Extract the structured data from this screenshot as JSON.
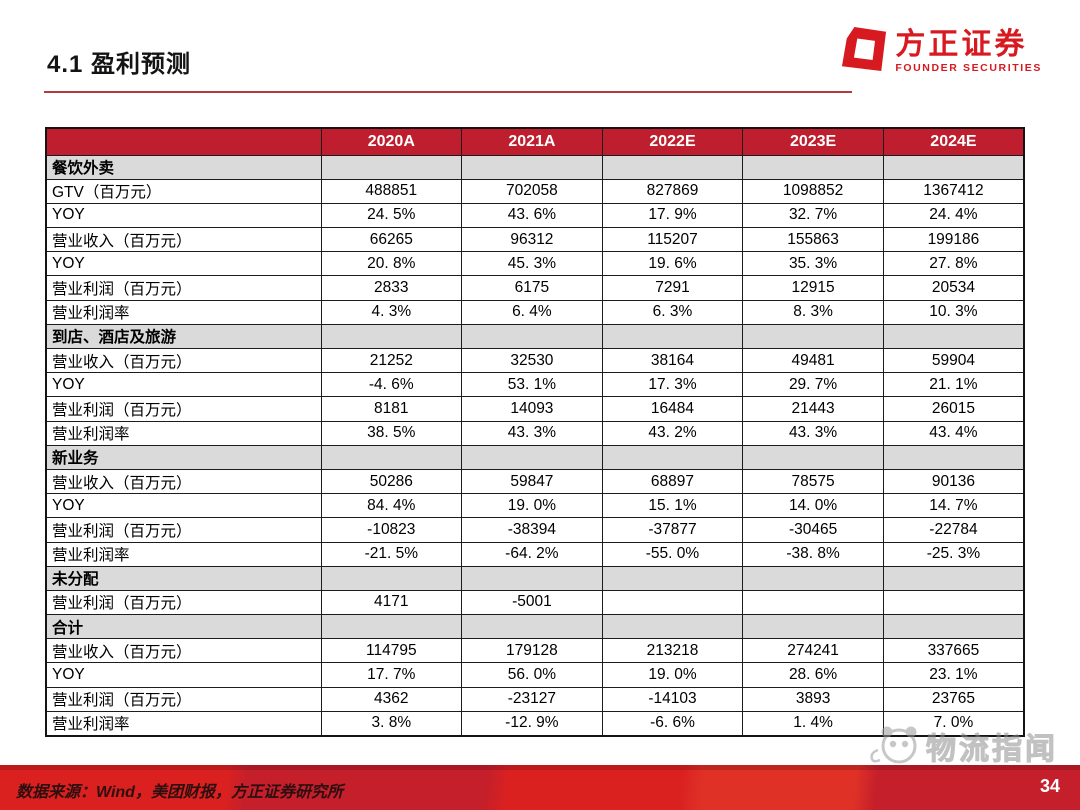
{
  "header": {
    "title": "4.1 盈利预测"
  },
  "logo": {
    "name_cn": "方正证券",
    "name_en": "FOUNDER SECURITIES"
  },
  "watermark": {
    "text": "物流指闻"
  },
  "footer": {
    "source": "数据来源：Wind，美团财报，方正证券研究所",
    "page_number": "34"
  },
  "colors": {
    "header_red": "#be1e2d",
    "section_gray": "#dadada",
    "logo_red": "#d71920",
    "rule_red": "#b23a3e",
    "footer_red": "#da2120",
    "footer_dark_red": "#c41f2b"
  },
  "chart_data": {
    "type": "table",
    "title": "盈利预测表（美团分业务）",
    "columns": [
      "",
      "2020A",
      "2021A",
      "2022E",
      "2023E",
      "2024E"
    ],
    "rows": [
      {
        "label": "餐饮外卖",
        "type": "section",
        "values": [
          "",
          "",
          "",
          "",
          ""
        ]
      },
      {
        "label": "GTV（百万元）",
        "type": "data",
        "values": [
          "488851",
          "702058",
          "827869",
          "1098852",
          "1367412"
        ]
      },
      {
        "label": "YOY",
        "type": "data",
        "values": [
          "24. 5%",
          "43. 6%",
          "17. 9%",
          "32. 7%",
          "24. 4%"
        ]
      },
      {
        "label": "营业收入（百万元）",
        "type": "data",
        "values": [
          "66265",
          "96312",
          "115207",
          "155863",
          "199186"
        ]
      },
      {
        "label": "YOY",
        "type": "data",
        "values": [
          "20. 8%",
          "45. 3%",
          "19. 6%",
          "35. 3%",
          "27. 8%"
        ]
      },
      {
        "label": "营业利润（百万元）",
        "type": "data",
        "values": [
          "2833",
          "6175",
          "7291",
          "12915",
          "20534"
        ]
      },
      {
        "label": "营业利润率",
        "type": "data",
        "values": [
          "4. 3%",
          "6. 4%",
          "6. 3%",
          "8. 3%",
          "10. 3%"
        ]
      },
      {
        "label": "到店、酒店及旅游",
        "type": "section",
        "values": [
          "",
          "",
          "",
          "",
          ""
        ]
      },
      {
        "label": "营业收入（百万元）",
        "type": "data",
        "values": [
          "21252",
          "32530",
          "38164",
          "49481",
          "59904"
        ]
      },
      {
        "label": "YOY",
        "type": "data",
        "values": [
          "-4. 6%",
          "53. 1%",
          "17. 3%",
          "29. 7%",
          "21. 1%"
        ]
      },
      {
        "label": "营业利润（百万元）",
        "type": "data",
        "values": [
          "8181",
          "14093",
          "16484",
          "21443",
          "26015"
        ]
      },
      {
        "label": "营业利润率",
        "type": "data",
        "values": [
          "38. 5%",
          "43. 3%",
          "43. 2%",
          "43. 3%",
          "43. 4%"
        ]
      },
      {
        "label": "新业务",
        "type": "section",
        "values": [
          "",
          "",
          "",
          "",
          ""
        ]
      },
      {
        "label": "营业收入（百万元）",
        "type": "data",
        "values": [
          "50286",
          "59847",
          "68897",
          "78575",
          "90136"
        ]
      },
      {
        "label": "YOY",
        "type": "data",
        "values": [
          "84. 4%",
          "19. 0%",
          "15. 1%",
          "14. 0%",
          "14. 7%"
        ]
      },
      {
        "label": "营业利润（百万元）",
        "type": "data",
        "values": [
          "-10823",
          "-38394",
          "-37877",
          "-30465",
          "-22784"
        ]
      },
      {
        "label": "营业利润率",
        "type": "data",
        "values": [
          "-21. 5%",
          "-64. 2%",
          "-55. 0%",
          "-38. 8%",
          "-25. 3%"
        ]
      },
      {
        "label": "未分配",
        "type": "section",
        "values": [
          "",
          "",
          "",
          "",
          ""
        ]
      },
      {
        "label": "营业利润（百万元）",
        "type": "data",
        "values": [
          "4171",
          "-5001",
          "",
          "",
          ""
        ]
      },
      {
        "label": "合计",
        "type": "section",
        "values": [
          "",
          "",
          "",
          "",
          ""
        ]
      },
      {
        "label": "营业收入（百万元）",
        "type": "data",
        "values": [
          "114795",
          "179128",
          "213218",
          "274241",
          "337665"
        ]
      },
      {
        "label": "YOY",
        "type": "data",
        "values": [
          "17. 7%",
          "56. 0%",
          "19. 0%",
          "28. 6%",
          "23. 1%"
        ]
      },
      {
        "label": "营业利润（百万元）",
        "type": "data",
        "values": [
          "4362",
          "-23127",
          "-14103",
          "3893",
          "23765"
        ]
      },
      {
        "label": "营业利润率",
        "type": "data",
        "values": [
          "3. 8%",
          "-12. 9%",
          "-6. 6%",
          "1. 4%",
          "7. 0%"
        ]
      }
    ]
  }
}
